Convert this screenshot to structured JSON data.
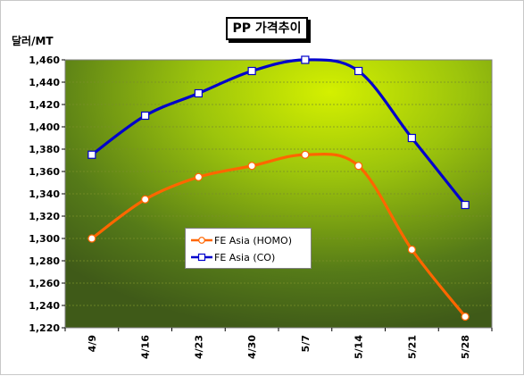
{
  "chart_data": {
    "type": "line",
    "title": "PP 가격추이",
    "ylabel": "달러/MT",
    "xlabel": "",
    "categories": [
      "4/9",
      "4/16",
      "4/23",
      "4/30",
      "5/7",
      "5/14",
      "5/21",
      "5/28"
    ],
    "ylim": [
      1220,
      1460
    ],
    "yticks": [
      1220,
      1240,
      1260,
      1280,
      1300,
      1320,
      1340,
      1360,
      1380,
      1400,
      1420,
      1440,
      1460
    ],
    "ytick_labels": [
      "1,220",
      "1,240",
      "1,260",
      "1,280",
      "1,300",
      "1,320",
      "1,340",
      "1,360",
      "1,380",
      "1,400",
      "1,420",
      "1,440",
      "1,460"
    ],
    "grid": true,
    "legend_position": "center",
    "series": [
      {
        "name": "FE Asia (HOMO)",
        "values": [
          1300,
          1335,
          1355,
          1365,
          1375,
          1365,
          1290,
          1230
        ],
        "color": "#ff6600",
        "marker": "circle"
      },
      {
        "name": "FE Asia (CO)",
        "values": [
          1375,
          1410,
          1430,
          1450,
          1460,
          1450,
          1390,
          1330
        ],
        "color": "#0000cc",
        "marker": "square"
      }
    ]
  }
}
